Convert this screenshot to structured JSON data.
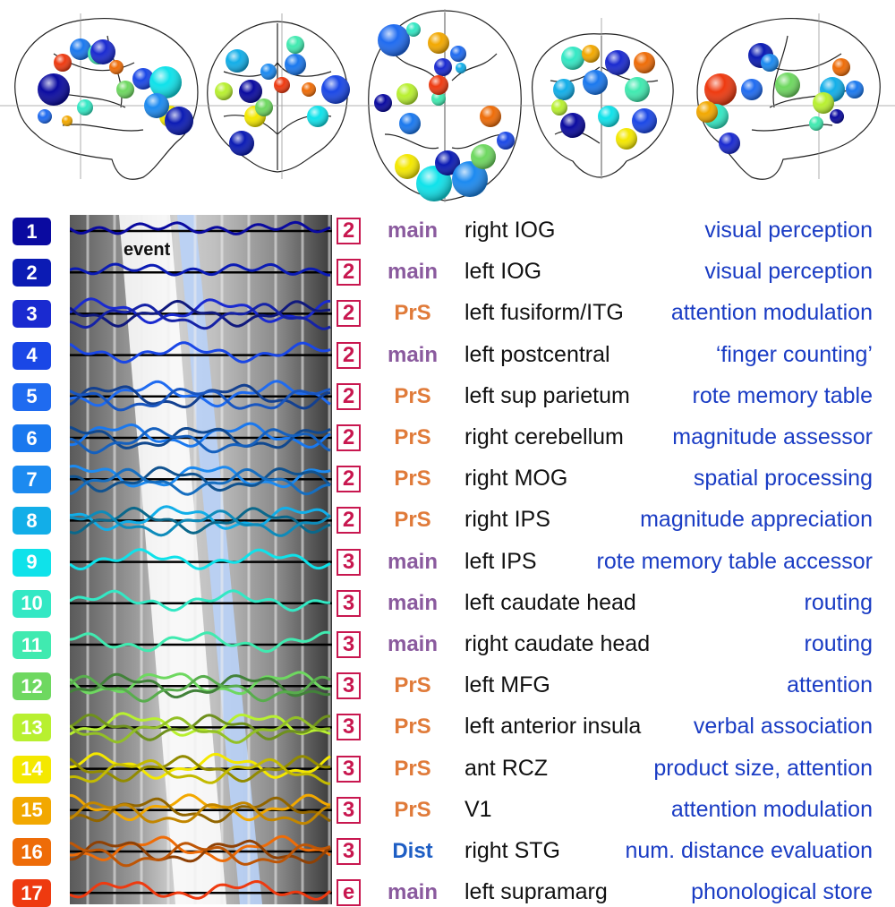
{
  "event_label": "event",
  "type_colors": {
    "main": "#8a5a9e",
    "PrS": "#e07b3a",
    "Dist": "#1e5ec4"
  },
  "rows": [
    {
      "n": "1",
      "step": "2",
      "type": "main",
      "region": "right IOG",
      "function": "visual perception",
      "color": "#0a0aa0",
      "traces": 1
    },
    {
      "n": "2",
      "step": "2",
      "type": "main",
      "region": "left IOG",
      "function": "visual perception",
      "color": "#0b1bb4",
      "traces": 1
    },
    {
      "n": "3",
      "step": "2",
      "type": "PrS",
      "region": "left fusiform/ITG",
      "function": "attention modulation",
      "color": "#1a2ad0",
      "traces": 3
    },
    {
      "n": "4",
      "step": "2",
      "type": "main",
      "region": "left postcentral",
      "function": "‘finger counting’",
      "color": "#1a47e6",
      "traces": 1
    },
    {
      "n": "5",
      "step": "2",
      "type": "PrS",
      "region": "left sup parietum",
      "function": "rote memory table",
      "color": "#1f6bf0",
      "traces": 3
    },
    {
      "n": "6",
      "step": "2",
      "type": "PrS",
      "region": "right cerebellum",
      "function": "magnitude assessor",
      "color": "#1a78ee",
      "traces": 3
    },
    {
      "n": "7",
      "step": "2",
      "type": "PrS",
      "region": "right MOG",
      "function": "spatial processing",
      "color": "#1c8af0",
      "traces": 3
    },
    {
      "n": "8",
      "step": "2",
      "type": "PrS",
      "region": "right IPS",
      "function": "magnitude appreciation",
      "color": "#12aee8",
      "traces": 3
    },
    {
      "n": "9",
      "step": "3",
      "type": "main",
      "region": "left IPS",
      "function": "rote memory table accessor",
      "color": "#0fe2ea",
      "traces": 1
    },
    {
      "n": "10",
      "step": "3",
      "type": "main",
      "region": "left caudate head",
      "function": "routing",
      "color": "#33e8c4",
      "traces": 1
    },
    {
      "n": "11",
      "step": "3",
      "type": "main",
      "region": "right caudate head",
      "function": "routing",
      "color": "#40eab0",
      "traces": 1
    },
    {
      "n": "12",
      "step": "3",
      "type": "PrS",
      "region": "left MFG",
      "function": "attention",
      "color": "#6ed860",
      "traces": 3
    },
    {
      "n": "13",
      "step": "3",
      "type": "PrS",
      "region": "left anterior insula",
      "function": "verbal association",
      "color": "#b8f030",
      "traces": 3
    },
    {
      "n": "14",
      "step": "3",
      "type": "PrS",
      "region": "ant RCZ",
      "function": "product size, attention",
      "color": "#f4e800",
      "traces": 3
    },
    {
      "n": "15",
      "step": "3",
      "type": "PrS",
      "region": "V1",
      "function": "attention modulation",
      "color": "#f2a800",
      "traces": 3
    },
    {
      "n": "16",
      "step": "3",
      "type": "Dist",
      "region": "right STG",
      "function": "num. distance evaluation",
      "color": "#ee6c08",
      "traces": 3
    },
    {
      "n": "17",
      "step": "e",
      "type": "main",
      "region": "left supramarg",
      "function": "phonological store",
      "color": "#ee3a10",
      "traces": 1
    }
  ]
}
